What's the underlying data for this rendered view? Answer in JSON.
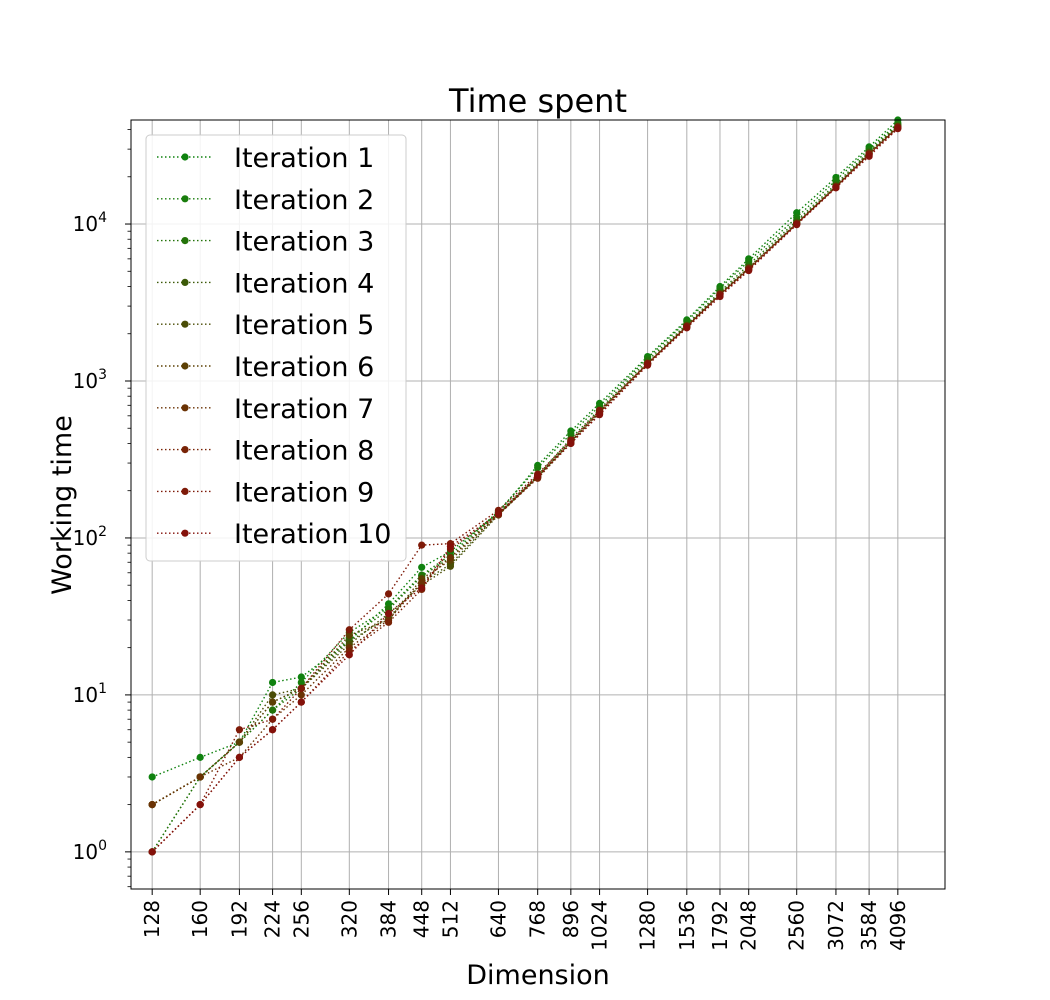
{
  "chart_data": {
    "type": "line",
    "title": "Time spent",
    "xlabel": "Dimension",
    "ylabel": "Working time",
    "x_scale": "log",
    "y_scale": "log",
    "x": [
      128,
      160,
      192,
      224,
      256,
      320,
      384,
      448,
      512,
      640,
      768,
      896,
      1024,
      1280,
      1536,
      1792,
      2048,
      2560,
      3072,
      3584,
      4096
    ],
    "x_tick_labels": [
      "128",
      "160",
      "192",
      "224",
      "256",
      "320",
      "384",
      "448",
      "512",
      "640",
      "768",
      "896",
      "1024",
      "1280",
      "1536",
      "1792",
      "2048",
      "2560",
      "3072",
      "3584",
      "4096"
    ],
    "y_ticks": [
      {
        "value": 1,
        "base": "10",
        "exp": "0"
      },
      {
        "value": 10,
        "base": "10",
        "exp": "1"
      },
      {
        "value": 100,
        "base": "10",
        "exp": "2"
      },
      {
        "value": 1000,
        "base": "10",
        "exp": "3"
      },
      {
        "value": 10000,
        "base": "10",
        "exp": "4"
      }
    ],
    "xlim": [
      116,
      5100
    ],
    "ylim": [
      0.58,
      46000
    ],
    "grid": true,
    "legend_position": "upper left",
    "series": [
      {
        "name": "Iteration 1",
        "color": "#0f820f",
        "values": [
          3,
          4,
          5,
          12,
          13,
          22,
          38,
          65,
          82,
          145,
          290,
          480,
          720,
          1430,
          2450,
          4000,
          6000,
          11800,
          19800,
          31000,
          46000
        ]
      },
      {
        "name": "Iteration 2",
        "color": "#197d0c",
        "values": [
          1,
          3,
          5,
          8,
          12,
          25,
          36,
          58,
          78,
          148,
          280,
          460,
          690,
          1400,
          2400,
          3900,
          5800,
          11000,
          19000,
          30000,
          44000
        ]
      },
      {
        "name": "Iteration 3",
        "color": "#237309",
        "values": [
          1,
          3,
          5,
          8,
          11,
          23,
          35,
          57,
          75,
          145,
          250,
          430,
          660,
          1350,
          2300,
          3700,
          5500,
          10500,
          18000,
          29000,
          43000
        ]
      },
      {
        "name": "Iteration 4",
        "color": "#3c5a08",
        "values": [
          2,
          3,
          5,
          9,
          11,
          22,
          31,
          52,
          68,
          142,
          245,
          410,
          640,
          1300,
          2250,
          3600,
          5300,
          10200,
          17500,
          28500,
          42000
        ]
      },
      {
        "name": "Iteration 5",
        "color": "#4a4d06",
        "values": [
          2,
          3,
          5,
          10,
          11,
          21,
          33,
          50,
          66,
          140,
          243,
          405,
          630,
          1280,
          2220,
          3550,
          5200,
          10100,
          17300,
          28000,
          41500
        ]
      },
      {
        "name": "Iteration 6",
        "color": "#5c4004",
        "values": [
          2,
          3,
          5,
          9,
          11,
          24,
          30,
          55,
          72,
          143,
          250,
          415,
          640,
          1300,
          2250,
          3600,
          5250,
          10100,
          17400,
          28200,
          41800
        ]
      },
      {
        "name": "Iteration 7",
        "color": "#6a3204",
        "values": [
          2,
          3,
          4,
          7,
          10,
          20,
          30,
          52,
          75,
          140,
          245,
          410,
          630,
          1290,
          2230,
          3560,
          5200,
          10050,
          17200,
          28000,
          41500
        ]
      },
      {
        "name": "Iteration 8",
        "color": "#782306",
        "values": [
          1,
          2,
          4,
          6,
          9,
          19,
          29,
          47,
          85,
          141,
          240,
          400,
          620,
          1270,
          2200,
          3500,
          5100,
          10000,
          17100,
          27500,
          41200
        ]
      },
      {
        "name": "Iteration 9",
        "color": "#7e1a08",
        "values": [
          1,
          2,
          6,
          7,
          11,
          26,
          44,
          90,
          92,
          150,
          255,
          420,
          650,
          1290,
          2220,
          3540,
          5150,
          10000,
          17200,
          27800,
          41000
        ]
      },
      {
        "name": "Iteration 10",
        "color": "#84110a",
        "values": [
          1,
          2,
          4,
          6,
          9,
          18,
          33,
          48,
          88,
          143,
          248,
          400,
          610,
          1260,
          2180,
          3450,
          5050,
          9900,
          17000,
          27000,
          40500
        ]
      }
    ]
  }
}
